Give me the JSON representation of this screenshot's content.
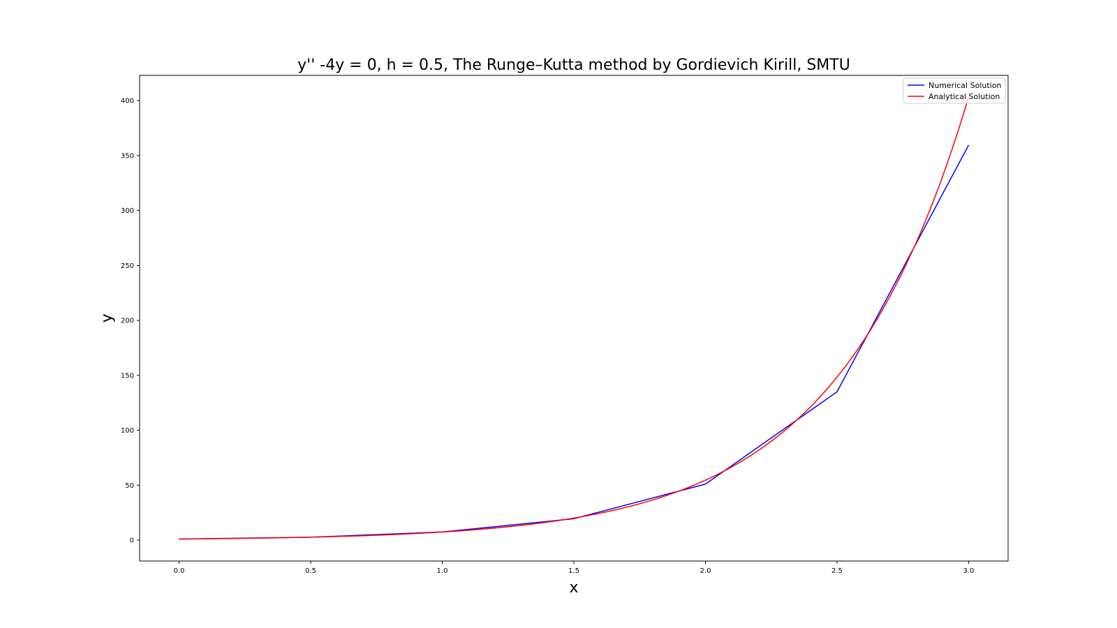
{
  "chart_data": {
    "type": "line",
    "title": "y'' -4y = 0, h = 0.5, The Runge–Kutta method by Gordievich Kirill, SMTU",
    "xlabel": "x",
    "ylabel": "y",
    "xlim": [
      -0.15,
      3.15
    ],
    "ylim": [
      -19,
      423
    ],
    "xticks": [
      0.0,
      0.5,
      1.0,
      1.5,
      2.0,
      2.5,
      3.0
    ],
    "xtick_labels": [
      "0.0",
      "0.5",
      "1.0",
      "1.5",
      "2.0",
      "2.5",
      "3.0"
    ],
    "yticks": [
      0,
      50,
      100,
      150,
      200,
      250,
      300,
      350,
      400
    ],
    "ytick_labels": [
      "0",
      "50",
      "100",
      "150",
      "200",
      "250",
      "300",
      "350",
      "400"
    ],
    "grid": false,
    "legend_position": "top-right",
    "series": [
      {
        "name": "Numerical Solution",
        "color": "#0000ff",
        "kind": "points",
        "x": [
          0.0,
          0.5,
          1.0,
          1.5,
          2.0,
          2.5,
          3.0
        ],
        "y": [
          1.0,
          2.7,
          7.4,
          19.5,
          51.0,
          135.0,
          359.5
        ]
      },
      {
        "name": "Analytical Solution",
        "color": "#ff0000",
        "kind": "curve",
        "function": "exp(2x)",
        "x_range": [
          0.0,
          3.0
        ]
      }
    ]
  }
}
